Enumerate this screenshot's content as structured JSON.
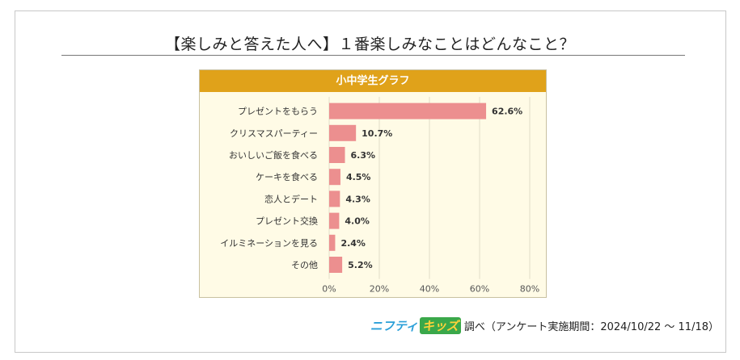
{
  "heading": "【楽しみと答えた人へ】１番楽しみなことはどんなこと？",
  "panel_title": "小中学生グラフ",
  "footer": {
    "logo_part1": "ニフティ",
    "logo_part2": "キッズ",
    "text": "調べ（アンケート実施期間：2024/10/22 ～ 11/18）"
  },
  "colors": {
    "bar": "#ec8f8f",
    "header": "#e0a21a",
    "panel_bg": "#fffbe6",
    "grid": "#e2dcc8"
  },
  "chart_data": {
    "type": "bar",
    "orientation": "horizontal",
    "title": "小中学生グラフ",
    "categories": [
      "プレゼントをもらう",
      "クリスマスパーティー",
      "おいしいご飯を食べる",
      "ケーキを食べる",
      "恋人とデート",
      "プレゼント交換",
      "イルミネーションを見る",
      "その他"
    ],
    "values": [
      62.6,
      10.7,
      6.3,
      4.5,
      4.3,
      4.0,
      2.4,
      5.2
    ],
    "value_labels": [
      "62.6%",
      "10.7%",
      "6.3%",
      "4.5%",
      "4.3%",
      "4.0%",
      "2.4%",
      "5.2%"
    ],
    "xlim": [
      0,
      80
    ],
    "xticks": [
      0,
      20,
      40,
      60,
      80
    ],
    "xtick_labels": [
      "0%",
      "20%",
      "40%",
      "60%",
      "80%"
    ],
    "grid": true,
    "legend": "none"
  }
}
